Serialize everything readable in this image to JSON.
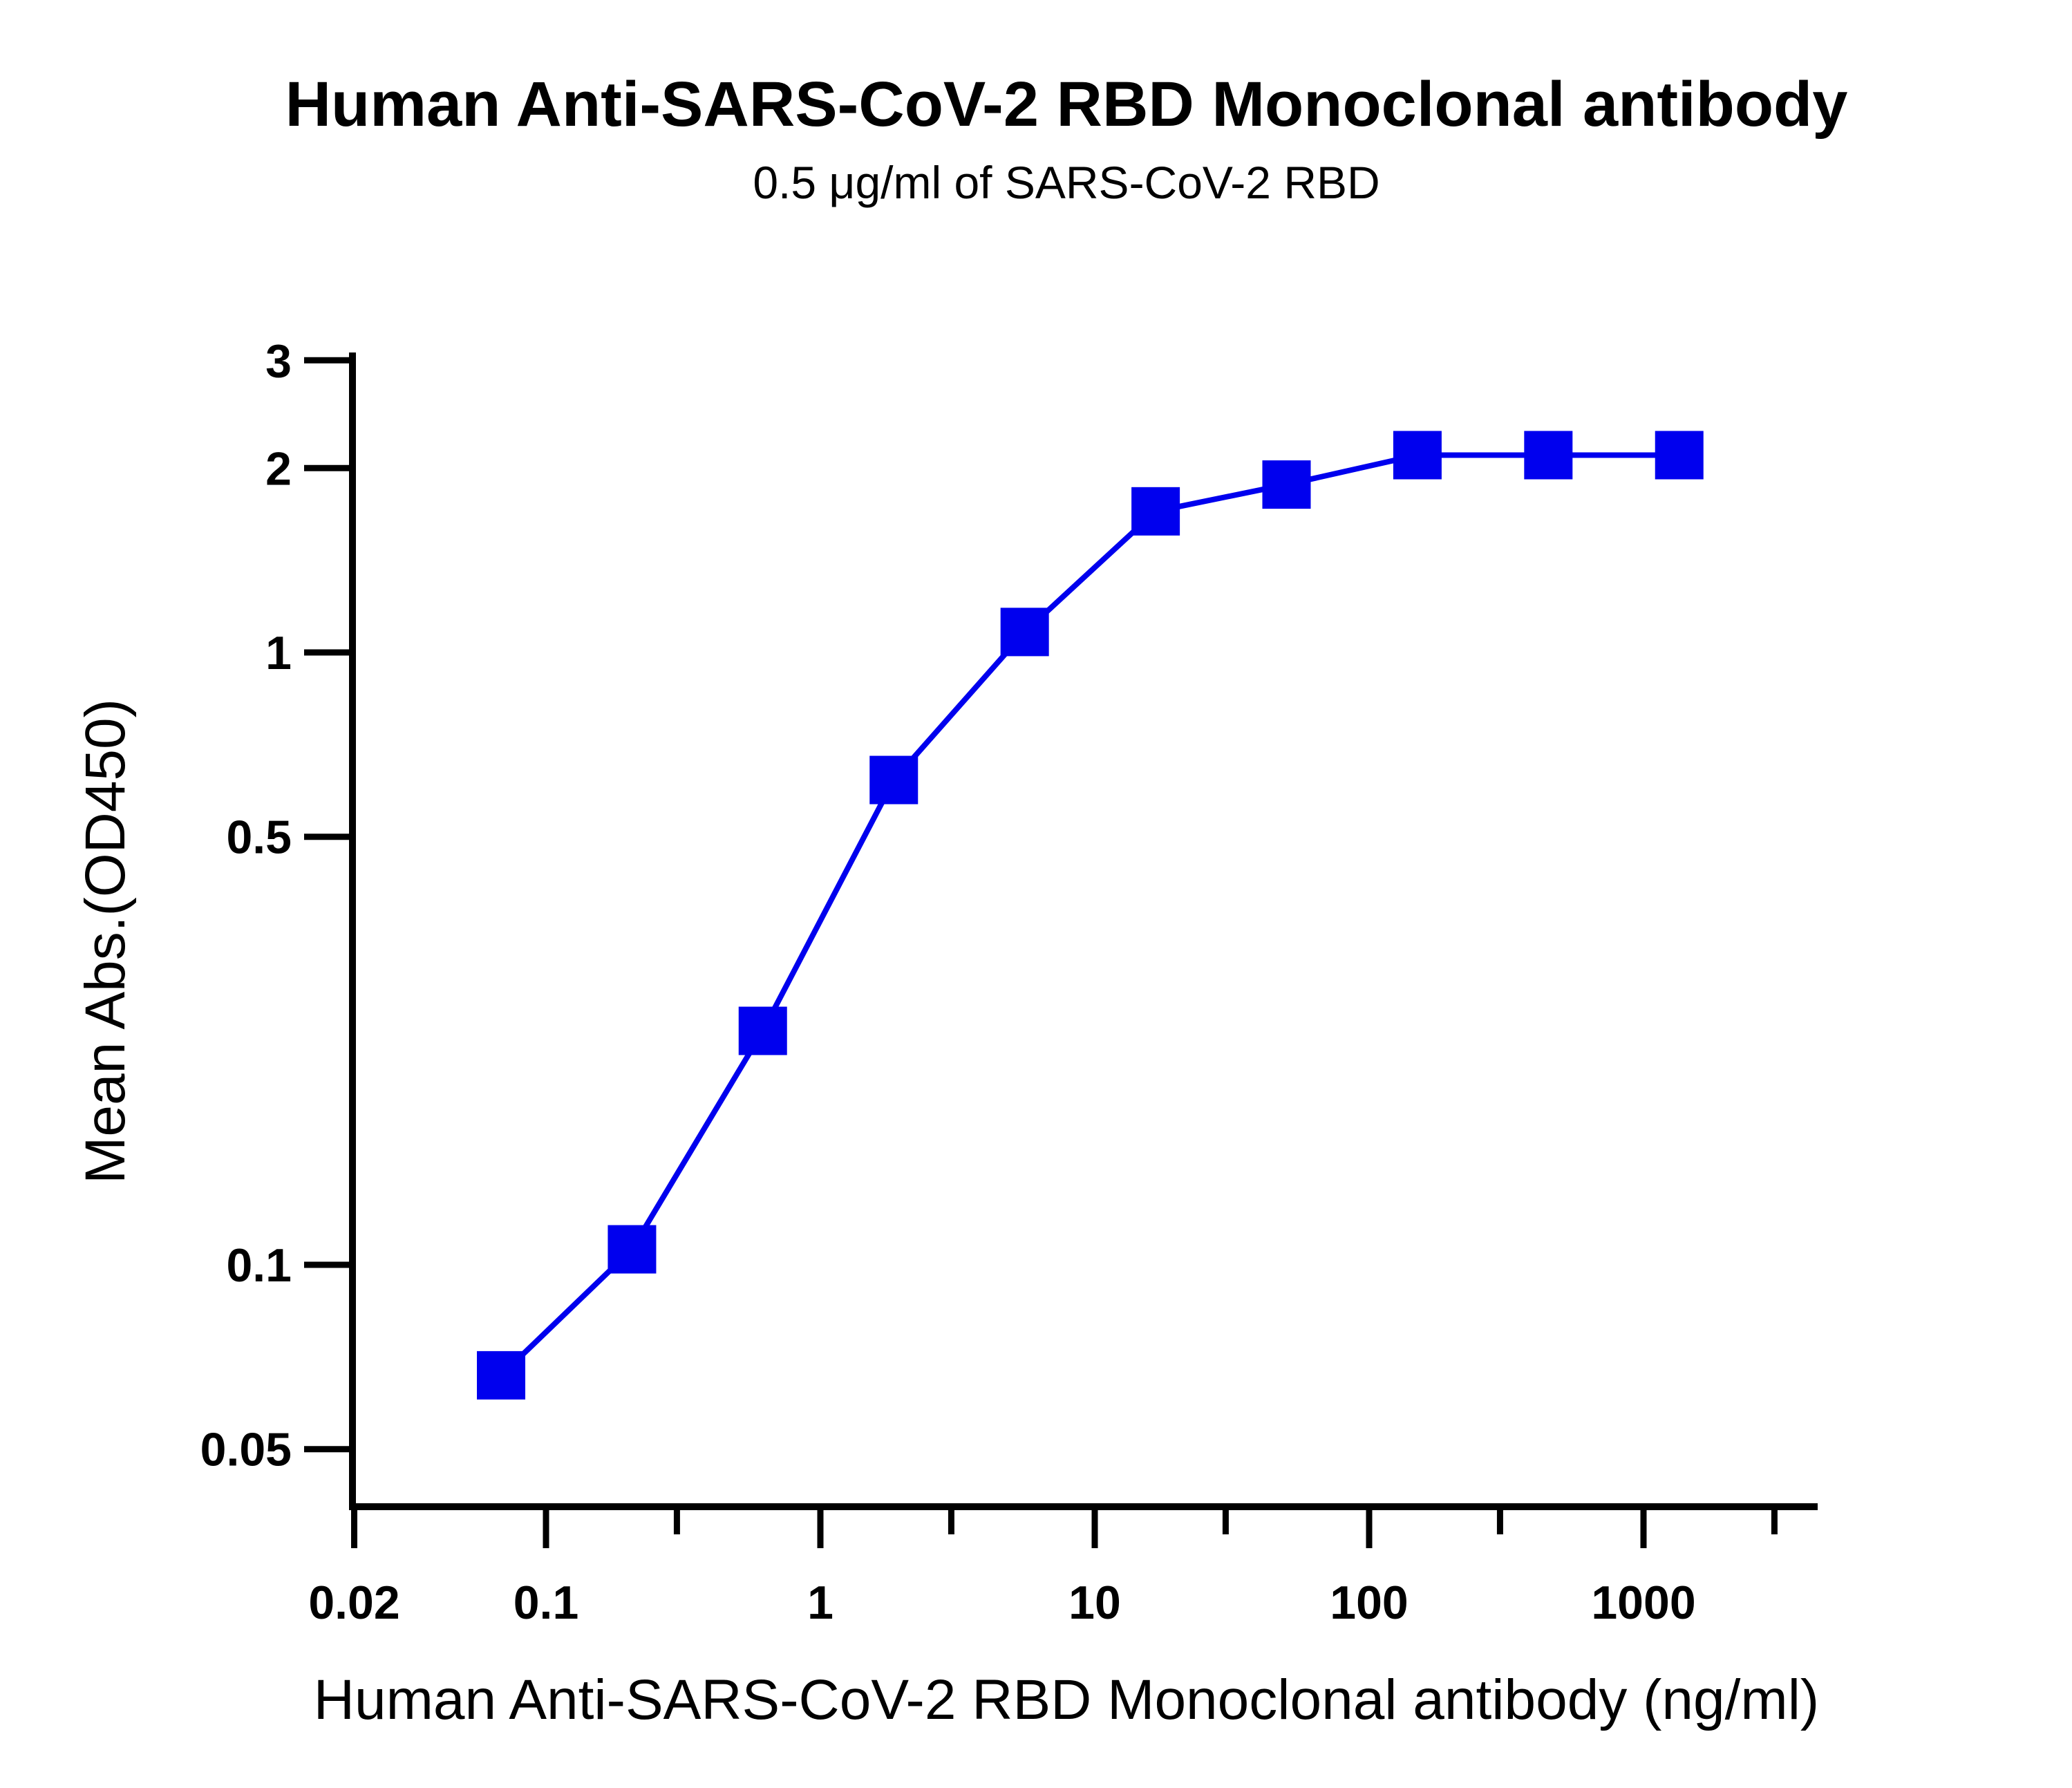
{
  "chart_data": {
    "type": "line",
    "title": "Human Anti-SARS-CoV-2 RBD Monoclonal antibody",
    "subtitle": "0.5 μg/ml of SARS-CoV-2 RBD",
    "xlabel": "Human Anti-SARS-CoV-2 RBD Monoclonal antibody (ng/ml)",
    "ylabel": "Mean Abs.(OD450)",
    "x_scale": "log",
    "y_scale": "log",
    "xlim": [
      0.013,
      4000
    ],
    "ylim": [
      0.04,
      3
    ],
    "x_ticks": [
      0.02,
      0.1,
      1,
      10,
      100,
      1000
    ],
    "x_tick_labels": [
      "0.02",
      "0.1",
      "1",
      "10",
      "100",
      "1000"
    ],
    "x_minor_ticks": [
      0.3,
      3,
      30,
      300,
      3000
    ],
    "y_ticks": [
      0.05,
      0.1,
      0.5,
      1,
      2,
      3
    ],
    "y_tick_labels": [
      "0.05",
      "0.1",
      "0.5",
      "1",
      "2",
      "3"
    ],
    "grid": false,
    "series": [
      {
        "marker": "square",
        "color": "#0000ee",
        "x": [
          0.0686,
          0.2058,
          0.617,
          1.852,
          5.556,
          16.67,
          50,
          150,
          450,
          1350
        ],
        "y": [
          0.066,
          0.106,
          0.241,
          0.619,
          1.08,
          1.7,
          1.88,
          2.1,
          2.1,
          2.1
        ]
      }
    ]
  }
}
